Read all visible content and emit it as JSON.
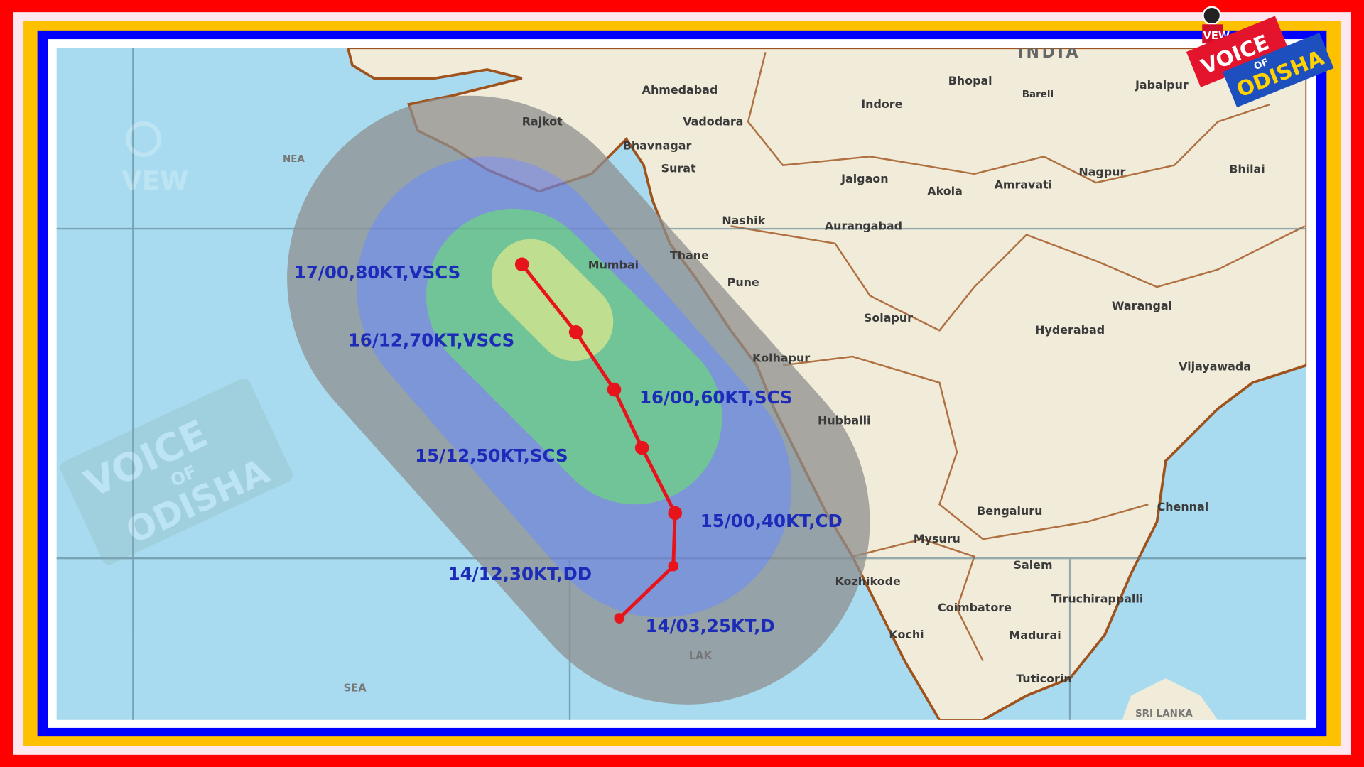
{
  "map": {
    "country_label": "INDIA",
    "sea_labels": [
      "NEA",
      "SEA",
      "LAK"
    ],
    "cities": [
      "Ahmedabad",
      "Rajkot",
      "Vadodara",
      "Bhavnagar",
      "Surat",
      "Indore",
      "Bhopal",
      "Bareli",
      "Jabalpur",
      "Jalgaon",
      "Akola",
      "Amravati",
      "Nagpur",
      "Bhilai",
      "Nashik",
      "Aurangabad",
      "Mumbai",
      "Thane",
      "Pune",
      "Solapur",
      "Warangal",
      "Hyderabad",
      "Vijayawada",
      "Kolhapur",
      "Hubballi",
      "Bengaluru",
      "Chennai",
      "Mysuru",
      "Salem",
      "Kozhikode",
      "Coimbatore",
      "Tiruchirappalli",
      "Kochi",
      "Madurai",
      "Tuticorin",
      "SRI LANKA"
    ],
    "track_points": [
      {
        "label": "14/03,25KT,D"
      },
      {
        "label": "14/12,30KT,DD"
      },
      {
        "label": "15/00,40KT,CD"
      },
      {
        "label": "15/12,50KT,SCS"
      },
      {
        "label": "16/00,60KT,SCS"
      },
      {
        "label": "16/12,70KT,VSCS"
      },
      {
        "label": "17/00,80KT,VSCS"
      }
    ],
    "colors": {
      "track": "#e8141c",
      "label": "#1c2bb8",
      "cone_outer": "#8f8f8f",
      "cone_mid": "#6f7fd0",
      "cone_inner": "#5fbd7a",
      "cone_core": "#c8e070",
      "sea": "#a8dbef",
      "land": "#f1ecd9",
      "border": "#a0521c"
    }
  },
  "branding": {
    "logo_text": [
      "VOICE",
      "OF",
      "ODISHA"
    ],
    "logo_badge": "VEW"
  },
  "frame_colors": [
    "#ff0000",
    "#fce8ee",
    "#ffc000",
    "#0000ff",
    "#ffffff"
  ]
}
